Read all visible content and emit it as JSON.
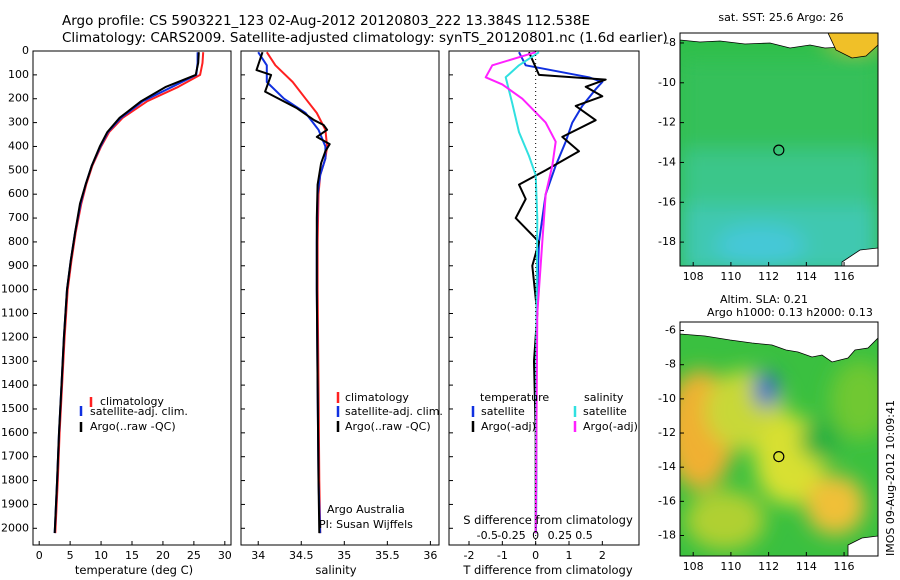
{
  "header": {
    "line1": "Argo profile: CS 5903221_123 02-Aug-2012 20120803_222 13.384S 112.538E",
    "line2": "Climatology: CARS2009. Satellite-adjusted climatology: synTS_20120801.nc (1.6d earlier)"
  },
  "side_stamp": "IMOS 09-Aug-2012 10:09:41",
  "colors": {
    "climatology": "#ff2020",
    "satellite": "#1030e0",
    "argo": "#000000",
    "sal_satellite": "#30e0e0",
    "sal_argo": "#ff20ff",
    "map_water": "#30c040",
    "land": "#ffffff"
  },
  "chart_data": [
    {
      "type": "line",
      "name": "temperature_profile",
      "xlabel": "temperature (deg C)",
      "ylabel": "",
      "xlim": [
        -1,
        31
      ],
      "ylim": [
        2070,
        0
      ],
      "xticks": [
        0,
        5,
        10,
        15,
        20,
        25,
        30
      ],
      "yticks": [
        0,
        100,
        200,
        300,
        400,
        500,
        600,
        700,
        800,
        900,
        1000,
        1100,
        1200,
        1300,
        1400,
        1500,
        1600,
        1700,
        1800,
        1900,
        2000
      ],
      "legend": [
        "climatology",
        "satellite-adj. clim.",
        "Argo(..raw -QC)"
      ],
      "legend_position": "lower-center",
      "series": [
        {
          "name": "climatology",
          "color_key": "climatology",
          "x": [
            26.5,
            26.4,
            26.0,
            22.5,
            17.5,
            13.5,
            11.3,
            10.0,
            8.6,
            7.6,
            6.8,
            5.9,
            5.2,
            4.6,
            4.1,
            3.7,
            3.3,
            3.0,
            2.6
          ],
          "y": [
            5,
            50,
            100,
            150,
            210,
            280,
            340,
            400,
            480,
            560,
            640,
            760,
            880,
            1000,
            1200,
            1400,
            1600,
            1800,
            2020
          ]
        },
        {
          "name": "satellite-adj. clim.",
          "color_key": "satellite",
          "x": [
            25.6,
            25.6,
            25.4,
            21.5,
            16.8,
            13.2,
            11.1,
            9.9,
            8.5,
            7.5,
            6.7,
            5.8,
            5.1,
            4.5,
            4.0,
            3.6,
            3.2,
            2.9,
            2.5
          ],
          "y": [
            5,
            50,
            100,
            150,
            210,
            280,
            340,
            400,
            480,
            560,
            640,
            760,
            880,
            1000,
            1200,
            1400,
            1600,
            1800,
            2020
          ]
        },
        {
          "name": "Argo(..raw -QC)",
          "color_key": "argo",
          "x": [
            25.8,
            25.7,
            25.3,
            20.5,
            16.5,
            13.0,
            11.0,
            9.8,
            8.5,
            7.5,
            6.6,
            5.8,
            5.1,
            4.5,
            4.0,
            3.6,
            3.2,
            2.9,
            2.5
          ],
          "y": [
            5,
            50,
            100,
            150,
            210,
            280,
            340,
            400,
            480,
            560,
            640,
            760,
            880,
            1000,
            1200,
            1400,
            1600,
            1800,
            2020
          ]
        }
      ]
    },
    {
      "type": "line",
      "name": "salinity_profile",
      "xlabel": "salinity",
      "xlim": [
        33.8,
        36.1
      ],
      "ylim": [
        2070,
        0
      ],
      "xticks": [
        34,
        34.5,
        35,
        35.5,
        36
      ],
      "legend": [
        "climatology",
        "satellite-adj. clim.",
        "Argo(..raw -QC)"
      ],
      "legend_position": "lower-center",
      "annotations": [
        "Argo Australia",
        "PI: Susan Wijffels"
      ],
      "series": [
        {
          "name": "climatology",
          "color_key": "climatology",
          "x": [
            34.1,
            34.2,
            34.4,
            34.55,
            34.68,
            34.78,
            34.8,
            34.78,
            34.72,
            34.7,
            34.69,
            34.69,
            34.7,
            34.71,
            34.72
          ],
          "y": [
            5,
            60,
            130,
            200,
            260,
            330,
            400,
            450,
            520,
            600,
            800,
            1000,
            1400,
            1800,
            2020
          ]
        },
        {
          "name": "satellite-adj. clim.",
          "color_key": "satellite",
          "x": [
            34.0,
            34.1,
            34.1,
            34.3,
            34.55,
            34.7,
            34.78,
            34.78,
            34.72,
            34.69,
            34.68,
            34.68,
            34.69,
            34.7,
            34.72
          ],
          "y": [
            5,
            60,
            130,
            200,
            260,
            330,
            400,
            450,
            520,
            600,
            800,
            1000,
            1400,
            1800,
            2020
          ]
        },
        {
          "name": "Argo(..raw -QC)",
          "color_key": "argo",
          "x": [
            34.05,
            33.98,
            34.15,
            34.08,
            34.45,
            34.65,
            34.76,
            34.8,
            34.68,
            34.83,
            34.78,
            34.73,
            34.69,
            34.68,
            34.68,
            34.69,
            34.7,
            34.71
          ],
          "y": [
            5,
            80,
            100,
            170,
            240,
            290,
            310,
            330,
            360,
            390,
            420,
            470,
            560,
            700,
            1000,
            1400,
            1800,
            2020
          ]
        }
      ]
    },
    {
      "type": "line",
      "name": "difference_profile",
      "xlabel": "T difference from climatology",
      "xlabel_top": "S difference from climatology",
      "xlim": [
        -2.6,
        3.1
      ],
      "ylim": [
        2070,
        0
      ],
      "xticks": [
        -2,
        -1,
        0,
        1,
        2
      ],
      "xticks_top": [
        "-0.5",
        "-0.25",
        "0",
        "0.25",
        "0.5"
      ],
      "legend_temperature_title": "temperature",
      "legend_salinity_title": "salinity",
      "legend": [
        "satellite",
        "Argo(-adj)",
        "satellite",
        "Argo(-adj)"
      ],
      "legend_position": "lower-center",
      "series": [
        {
          "name": "satellite",
          "color_key": "satellite",
          "x": [
            -0.5,
            -0.3,
            1.6,
            2.0,
            1.8,
            1.4,
            1.1,
            0.9,
            0.6,
            0.3,
            0.1,
            0.05,
            0.03,
            0.02,
            0.02,
            0.01
          ],
          "y": [
            5,
            60,
            110,
            130,
            160,
            230,
            300,
            380,
            480,
            600,
            800,
            1000,
            1200,
            1500,
            1800,
            2020
          ]
        },
        {
          "name": "Argo(-adj)",
          "color_key": "argo",
          "x": [
            -0.2,
            0.1,
            2.1,
            1.5,
            2.0,
            1.2,
            1.8,
            0.8,
            1.3,
            0.3,
            -0.5,
            -0.3,
            -0.6,
            0.1,
            -0.1,
            0.05,
            -0.05,
            0.0,
            0.0
          ],
          "y": [
            5,
            100,
            120,
            150,
            190,
            230,
            290,
            360,
            420,
            500,
            560,
            620,
            700,
            800,
            900,
            1100,
            1300,
            1600,
            2020
          ]
        },
        {
          "name": "satellite",
          "color_key": "sal_satellite",
          "x": [
            0.1,
            -0.5,
            -0.9,
            -0.7,
            -0.5,
            -0.2,
            0.0,
            0.05,
            0.02,
            0.0
          ],
          "y": [
            5,
            60,
            110,
            220,
            340,
            440,
            520,
            700,
            1200,
            2020
          ]
        },
        {
          "name": "Argo(-adj)",
          "color_key": "sal_argo",
          "x": [
            0.0,
            -1.3,
            -1.5,
            -1.0,
            -0.4,
            0.3,
            0.6,
            0.5,
            0.3,
            0.2,
            0.05,
            0.0
          ],
          "y": [
            5,
            60,
            110,
            140,
            200,
            300,
            380,
            480,
            600,
            800,
            1100,
            2020
          ]
        }
      ]
    },
    {
      "type": "heatmap",
      "name": "sst_map",
      "title": "sat. SST: 25.6  Argo: 26",
      "xlim": [
        107.3,
        117.8
      ],
      "ylim": [
        -19.2,
        -7.5
      ],
      "xticks": [
        108,
        110,
        112,
        114,
        116
      ],
      "yticks": [
        -8,
        -10,
        -12,
        -14,
        -16,
        -18
      ],
      "marker": {
        "lon": 112.54,
        "lat": -13.38
      }
    },
    {
      "type": "heatmap",
      "name": "sla_map",
      "title": "Altim. SLA: 0.21",
      "subtitle": "Argo h1000: 0.13  h2000: 0.13",
      "xlim": [
        107.3,
        117.8
      ],
      "ylim": [
        -19.2,
        -5.5
      ],
      "xticks": [
        108,
        110,
        112,
        114,
        116
      ],
      "yticks": [
        -6,
        -8,
        -10,
        -12,
        -14,
        -16,
        -18
      ],
      "marker": {
        "lon": 112.54,
        "lat": -13.38
      }
    }
  ]
}
